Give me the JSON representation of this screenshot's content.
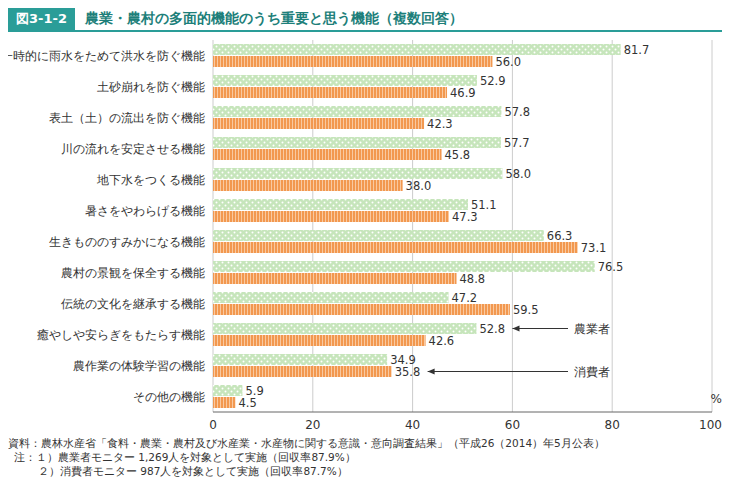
{
  "chart_data": {
    "type": "bar",
    "orientation": "horizontal",
    "figure_id": "図3-1-2",
    "title": "農業・農村の多面的機能のうち重要と思う機能（複数回答）",
    "xlabel": "%",
    "categories": [
      "一時的に雨水をためて洪水を防ぐ機能",
      "土砂崩れを防ぐ機能",
      "表土（土）の流出を防ぐ機能",
      "川の流れを安定させる機能",
      "地下水をつくる機能",
      "暑さをやわらげる機能",
      "生きもののすみかになる機能",
      "農村の景観を保全する機能",
      "伝統の文化を継承する機能",
      "癒やしや安らぎをもたらす機能",
      "農作業の体験学習の機能",
      "その他の機能"
    ],
    "series": [
      {
        "name": "農業者",
        "color": "#c6e5bb",
        "values": [
          81.7,
          52.9,
          57.8,
          57.7,
          58.0,
          51.1,
          66.3,
          76.5,
          47.2,
          52.8,
          34.9,
          5.9
        ],
        "value_labels": [
          "81.7",
          "52.9",
          "57.8",
          "57.7",
          "58.0",
          "51.1",
          "66.3",
          "76.5",
          "47.2",
          "52.8",
          "34.9",
          "5.9"
        ]
      },
      {
        "name": "消費者",
        "color": "#f2984f",
        "values": [
          56.0,
          46.9,
          42.3,
          45.8,
          38.0,
          47.3,
          73.1,
          48.8,
          59.5,
          42.6,
          35.8,
          4.5
        ],
        "value_labels": [
          "56.0",
          "46.9",
          "42.3",
          "45.8",
          "38.0",
          "47.3",
          "73.1",
          "48.8",
          "59.5",
          "42.6",
          "35.8",
          "4.5"
        ]
      }
    ],
    "xlim": [
      0,
      100
    ],
    "xticks": [
      0,
      20,
      40,
      60,
      80,
      100
    ],
    "grid": true,
    "data_labels": true,
    "source": "資料：農林水産省「食料・農業・農村及び水産業・水産物に関する意識・意向調査結果」（平成26（2014）年5月公表）",
    "notes": [
      "注：１）農業者モニター 1,269人を対象として実施（回収率87.9%）",
      "２）消費者モニター 987人を対象として実施（回収率87.7%）"
    ]
  }
}
